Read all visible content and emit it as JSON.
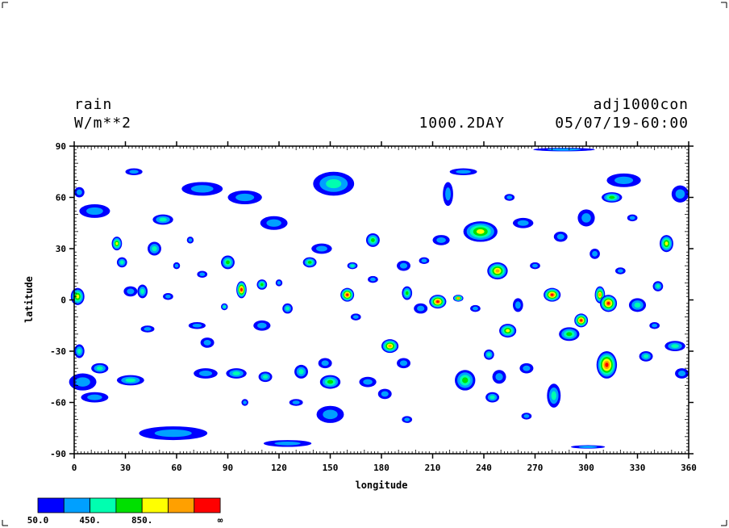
{
  "header": {
    "variable": "rain",
    "units": "W/m**2",
    "experiment": "adj1000con",
    "time_label": "1000.2DAY",
    "date_label": "05/07/19-60:00"
  },
  "chart_data": {
    "type": "heatmap",
    "xlabel": "longitude",
    "ylabel": "latitude",
    "xlim": [
      0,
      360
    ],
    "ylim": [
      -90,
      90
    ],
    "xticks": [
      0,
      30,
      60,
      90,
      120,
      150,
      180,
      210,
      240,
      270,
      300,
      330,
      360
    ],
    "yticks": [
      -90,
      -60,
      -30,
      0,
      30,
      60,
      90
    ],
    "xtick_labels": [
      "0",
      "30",
      "60",
      "90",
      "120",
      "150",
      "180",
      "210",
      "240",
      "270",
      "300",
      "330",
      "360"
    ],
    "ytick_labels": [
      "-90",
      "-60",
      "-30",
      "0",
      "30",
      "60",
      "90"
    ],
    "colorbar": {
      "colors": [
        "#0000ff",
        "#00a0ff",
        "#00ffb0",
        "#00e000",
        "#ffff00",
        "#ffa000",
        "#ff0000"
      ],
      "labels": [
        "50.0",
        "450.",
        "850.",
        "∞"
      ]
    },
    "features": [
      {
        "lon": 2,
        "lat": 2,
        "rx": 4,
        "ry": 5,
        "level": 4
      },
      {
        "lon": 15,
        "lat": -40,
        "rx": 5,
        "ry": 3,
        "level": 2
      },
      {
        "lon": 12,
        "lat": 52,
        "rx": 9,
        "ry": 4,
        "level": 1
      },
      {
        "lon": 25,
        "lat": 33,
        "rx": 3,
        "ry": 4,
        "level": 4
      },
      {
        "lon": 28,
        "lat": 22,
        "rx": 3,
        "ry": 3,
        "level": 2
      },
      {
        "lon": 33,
        "lat": 5,
        "rx": 4,
        "ry": 3,
        "level": 1
      },
      {
        "lon": 33,
        "lat": -47,
        "rx": 8,
        "ry": 3,
        "level": 2
      },
      {
        "lon": 35,
        "lat": 75,
        "rx": 5,
        "ry": 2,
        "level": 1
      },
      {
        "lon": 40,
        "lat": 5,
        "rx": 3,
        "ry": 4,
        "level": 2
      },
      {
        "lon": 43,
        "lat": -17,
        "rx": 4,
        "ry": 2,
        "level": 1
      },
      {
        "lon": 47,
        "lat": 30,
        "rx": 4,
        "ry": 4,
        "level": 2
      },
      {
        "lon": 52,
        "lat": 47,
        "rx": 6,
        "ry": 3,
        "level": 2
      },
      {
        "lon": 58,
        "lat": -78,
        "rx": 20,
        "ry": 4,
        "level": 1
      },
      {
        "lon": 55,
        "lat": 2,
        "rx": 3,
        "ry": 2,
        "level": 1
      },
      {
        "lon": 72,
        "lat": -15,
        "rx": 5,
        "ry": 2,
        "level": 1
      },
      {
        "lon": 75,
        "lat": 65,
        "rx": 12,
        "ry": 4,
        "level": 1
      },
      {
        "lon": 78,
        "lat": -25,
        "rx": 4,
        "ry": 3,
        "level": 1
      },
      {
        "lon": 75,
        "lat": 15,
        "rx": 3,
        "ry": 2,
        "level": 1
      },
      {
        "lon": 77,
        "lat": -43,
        "rx": 7,
        "ry": 3,
        "level": 1
      },
      {
        "lon": 95,
        "lat": -43,
        "rx": 6,
        "ry": 3,
        "level": 2
      },
      {
        "lon": 90,
        "lat": 22,
        "rx": 4,
        "ry": 4,
        "level": 3
      },
      {
        "lon": 98,
        "lat": 6,
        "rx": 3,
        "ry": 5,
        "level": 6
      },
      {
        "lon": 88,
        "lat": -4,
        "rx": 2,
        "ry": 2,
        "level": 2
      },
      {
        "lon": 100,
        "lat": 60,
        "rx": 10,
        "ry": 4,
        "level": 1
      },
      {
        "lon": 110,
        "lat": 9,
        "rx": 3,
        "ry": 3,
        "level": 3
      },
      {
        "lon": 110,
        "lat": -15,
        "rx": 5,
        "ry": 3,
        "level": 1
      },
      {
        "lon": 112,
        "lat": -45,
        "rx": 4,
        "ry": 3,
        "level": 2
      },
      {
        "lon": 117,
        "lat": 45,
        "rx": 8,
        "ry": 4,
        "level": 1
      },
      {
        "lon": 125,
        "lat": -5,
        "rx": 3,
        "ry": 3,
        "level": 2
      },
      {
        "lon": 130,
        "lat": -60,
        "rx": 4,
        "ry": 2,
        "level": 1
      },
      {
        "lon": 133,
        "lat": -42,
        "rx": 4,
        "ry": 4,
        "level": 2
      },
      {
        "lon": 138,
        "lat": 22,
        "rx": 4,
        "ry": 3,
        "level": 3
      },
      {
        "lon": 145,
        "lat": 30,
        "rx": 6,
        "ry": 3,
        "level": 1
      },
      {
        "lon": 150,
        "lat": -67,
        "rx": 8,
        "ry": 5,
        "level": 1
      },
      {
        "lon": 150,
        "lat": -48,
        "rx": 6,
        "ry": 4,
        "level": 3
      },
      {
        "lon": 147,
        "lat": -37,
        "rx": 4,
        "ry": 3,
        "level": 1
      },
      {
        "lon": 152,
        "lat": 68,
        "rx": 12,
        "ry": 7,
        "level": 2
      },
      {
        "lon": 160,
        "lat": 3,
        "rx": 4,
        "ry": 4,
        "level": 6
      },
      {
        "lon": 163,
        "lat": 20,
        "rx": 3,
        "ry": 2,
        "level": 2
      },
      {
        "lon": 175,
        "lat": 35,
        "rx": 4,
        "ry": 4,
        "level": 3
      },
      {
        "lon": 172,
        "lat": -48,
        "rx": 5,
        "ry": 3,
        "level": 1
      },
      {
        "lon": 182,
        "lat": -55,
        "rx": 4,
        "ry": 3,
        "level": 1
      },
      {
        "lon": 185,
        "lat": -27,
        "rx": 5,
        "ry": 4,
        "level": 5
      },
      {
        "lon": 193,
        "lat": 20,
        "rx": 4,
        "ry": 3,
        "level": 1
      },
      {
        "lon": 193,
        "lat": -37,
        "rx": 4,
        "ry": 3,
        "level": 1
      },
      {
        "lon": 195,
        "lat": 4,
        "rx": 3,
        "ry": 4,
        "level": 3
      },
      {
        "lon": 203,
        "lat": -5,
        "rx": 4,
        "ry": 3,
        "level": 1
      },
      {
        "lon": 213,
        "lat": -1,
        "rx": 5,
        "ry": 4,
        "level": 6
      },
      {
        "lon": 215,
        "lat": 35,
        "rx": 5,
        "ry": 3,
        "level": 1
      },
      {
        "lon": 225,
        "lat": 1,
        "rx": 3,
        "ry": 2,
        "level": 5
      },
      {
        "lon": 219,
        "lat": 62,
        "rx": 3,
        "ry": 7,
        "level": 1
      },
      {
        "lon": 229,
        "lat": -47,
        "rx": 6,
        "ry": 6,
        "level": 3
      },
      {
        "lon": 228,
        "lat": 75,
        "rx": 8,
        "ry": 2,
        "level": 1
      },
      {
        "lon": 238,
        "lat": 40,
        "rx": 10,
        "ry": 6,
        "level": 4
      },
      {
        "lon": 248,
        "lat": 17,
        "rx": 6,
        "ry": 5,
        "level": 5
      },
      {
        "lon": 243,
        "lat": -32,
        "rx": 3,
        "ry": 3,
        "level": 2
      },
      {
        "lon": 245,
        "lat": -57,
        "rx": 4,
        "ry": 3,
        "level": 2
      },
      {
        "lon": 249,
        "lat": -45,
        "rx": 4,
        "ry": 4,
        "level": 1
      },
      {
        "lon": 254,
        "lat": -18,
        "rx": 5,
        "ry": 4,
        "level": 4
      },
      {
        "lon": 260,
        "lat": -3,
        "rx": 3,
        "ry": 4,
        "level": 1
      },
      {
        "lon": 263,
        "lat": 45,
        "rx": 6,
        "ry": 3,
        "level": 1
      },
      {
        "lon": 265,
        "lat": -40,
        "rx": 4,
        "ry": 3,
        "level": 1
      },
      {
        "lon": 280,
        "lat": 3,
        "rx": 5,
        "ry": 4,
        "level": 6
      },
      {
        "lon": 281,
        "lat": -56,
        "rx": 4,
        "ry": 7,
        "level": 2
      },
      {
        "lon": 285,
        "lat": 37,
        "rx": 4,
        "ry": 3,
        "level": 1
      },
      {
        "lon": 290,
        "lat": -20,
        "rx": 6,
        "ry": 4,
        "level": 3
      },
      {
        "lon": 297,
        "lat": -12,
        "rx": 4,
        "ry": 4,
        "level": 6
      },
      {
        "lon": 300,
        "lat": 48,
        "rx": 5,
        "ry": 5,
        "level": 1
      },
      {
        "lon": 308,
        "lat": 3,
        "rx": 3,
        "ry": 5,
        "level": 5
      },
      {
        "lon": 312,
        "lat": -38,
        "rx": 6,
        "ry": 8,
        "level": 6
      },
      {
        "lon": 313,
        "lat": -2,
        "rx": 5,
        "ry": 5,
        "level": 6
      },
      {
        "lon": 305,
        "lat": 27,
        "rx": 3,
        "ry": 3,
        "level": 1
      },
      {
        "lon": 315,
        "lat": 60,
        "rx": 6,
        "ry": 3,
        "level": 3
      },
      {
        "lon": 322,
        "lat": 70,
        "rx": 10,
        "ry": 4,
        "level": 1
      },
      {
        "lon": 327,
        "lat": 48,
        "rx": 3,
        "ry": 2,
        "level": 1
      },
      {
        "lon": 330,
        "lat": -3,
        "rx": 5,
        "ry": 4,
        "level": 2
      },
      {
        "lon": 335,
        "lat": -33,
        "rx": 4,
        "ry": 3,
        "level": 2
      },
      {
        "lon": 342,
        "lat": 8,
        "rx": 3,
        "ry": 3,
        "level": 2
      },
      {
        "lon": 347,
        "lat": 33,
        "rx": 4,
        "ry": 5,
        "level": 4
      },
      {
        "lon": 352,
        "lat": -27,
        "rx": 6,
        "ry": 3,
        "level": 2
      },
      {
        "lon": 355,
        "lat": 62,
        "rx": 5,
        "ry": 5,
        "level": 1
      },
      {
        "lon": 3,
        "lat": 63,
        "rx": 3,
        "ry": 3,
        "level": 1
      },
      {
        "lon": 5,
        "lat": -48,
        "rx": 8,
        "ry": 5,
        "level": 1
      },
      {
        "lon": 12,
        "lat": -57,
        "rx": 8,
        "ry": 3,
        "level": 1
      },
      {
        "lon": 3,
        "lat": -30,
        "rx": 3,
        "ry": 4,
        "level": 2
      },
      {
        "lon": 356,
        "lat": -43,
        "rx": 4,
        "ry": 3,
        "level": 1
      },
      {
        "lon": 287,
        "lat": 88,
        "rx": 18,
        "ry": 1,
        "level": 1
      },
      {
        "lon": 301,
        "lat": -86,
        "rx": 10,
        "ry": 1,
        "level": 1
      },
      {
        "lon": 125,
        "lat": -84,
        "rx": 14,
        "ry": 2,
        "level": 1
      },
      {
        "lon": 175,
        "lat": 12,
        "rx": 3,
        "ry": 2,
        "level": 1
      },
      {
        "lon": 205,
        "lat": 23,
        "rx": 3,
        "ry": 2,
        "level": 1
      },
      {
        "lon": 68,
        "lat": 35,
        "rx": 2,
        "ry": 2,
        "level": 1
      },
      {
        "lon": 165,
        "lat": -10,
        "rx": 3,
        "ry": 2,
        "level": 1
      },
      {
        "lon": 235,
        "lat": -5,
        "rx": 3,
        "ry": 2,
        "level": 1
      },
      {
        "lon": 270,
        "lat": 20,
        "rx": 3,
        "ry": 2,
        "level": 1
      },
      {
        "lon": 320,
        "lat": 17,
        "rx": 3,
        "ry": 2,
        "level": 1
      },
      {
        "lon": 340,
        "lat": -15,
        "rx": 3,
        "ry": 2,
        "level": 1
      },
      {
        "lon": 60,
        "lat": 20,
        "rx": 2,
        "ry": 2,
        "level": 1
      },
      {
        "lon": 120,
        "lat": 10,
        "rx": 2,
        "ry": 2,
        "level": 1
      },
      {
        "lon": 255,
        "lat": 60,
        "rx": 3,
        "ry": 2,
        "level": 1
      },
      {
        "lon": 195,
        "lat": -70,
        "rx": 3,
        "ry": 2,
        "level": 1
      },
      {
        "lon": 265,
        "lat": -68,
        "rx": 3,
        "ry": 2,
        "level": 1
      },
      {
        "lon": 100,
        "lat": -60,
        "rx": 2,
        "ry": 2,
        "level": 1
      }
    ]
  }
}
